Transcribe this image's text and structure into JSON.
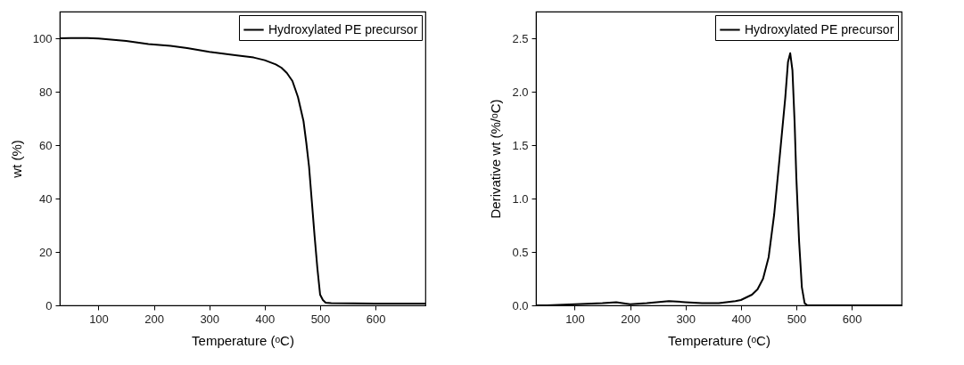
{
  "chart_data": [
    {
      "type": "line",
      "xlabel": "Temperature (ᵒC)",
      "ylabel": "wt (%)",
      "xlim": [
        30,
        690
      ],
      "xticks": [
        100,
        200,
        300,
        400,
        500,
        600
      ],
      "ylim": [
        0,
        110
      ],
      "yticks": [
        0,
        20,
        40,
        60,
        80,
        100
      ],
      "grid": false,
      "legend": "top right",
      "series": [
        {
          "name": "Hydroxylated PE precursor",
          "color": "#000000",
          "x": [
            30,
            50,
            80,
            100,
            150,
            190,
            230,
            260,
            300,
            350,
            380,
            400,
            420,
            430,
            440,
            450,
            460,
            470,
            475,
            480,
            485,
            490,
            495,
            500,
            505,
            510,
            520,
            600,
            690
          ],
          "values": [
            100,
            100.1,
            100.1,
            99.9,
            99,
            97.8,
            97.2,
            96.3,
            94.9,
            93.6,
            92.8,
            91.8,
            90.2,
            89,
            87,
            84,
            78,
            69,
            61,
            52,
            39,
            26,
            14,
            4,
            2,
            1,
            0.8,
            0.7,
            0.7
          ]
        }
      ]
    },
    {
      "type": "line",
      "xlabel": "Temperature (ᵒC)",
      "ylabel": "Derivative wt (%/ᵒC)",
      "xlim": [
        30,
        690
      ],
      "xticks": [
        100,
        200,
        300,
        400,
        500,
        600
      ],
      "ylim": [
        0,
        2.75
      ],
      "yticks": [
        {
          "value": 0,
          "label": "0.0"
        },
        {
          "value": 0.5,
          "label": "0.5"
        },
        {
          "value": 1,
          "label": "1.0"
        },
        {
          "value": 1.5,
          "label": "1.5"
        },
        {
          "value": 2,
          "label": "2.0"
        },
        {
          "value": 2.5,
          "label": "2.5"
        }
      ],
      "grid": false,
      "legend": "top right",
      "series": [
        {
          "name": "Hydroxylated PE precursor",
          "color": "#000000",
          "x": [
            30,
            50,
            100,
            150,
            175,
            200,
            230,
            270,
            300,
            330,
            360,
            390,
            400,
            420,
            430,
            440,
            450,
            460,
            470,
            480,
            485,
            489,
            493,
            497,
            500,
            505,
            510,
            515,
            520,
            600,
            690
          ],
          "values": [
            0,
            0,
            0.01,
            0.02,
            0.03,
            0.01,
            0.02,
            0.04,
            0.03,
            0.02,
            0.02,
            0.04,
            0.05,
            0.1,
            0.15,
            0.25,
            0.45,
            0.85,
            1.39,
            1.94,
            2.28,
            2.36,
            2.2,
            1.7,
            1.2,
            0.6,
            0.17,
            0.02,
            0,
            0,
            0
          ]
        }
      ]
    }
  ]
}
